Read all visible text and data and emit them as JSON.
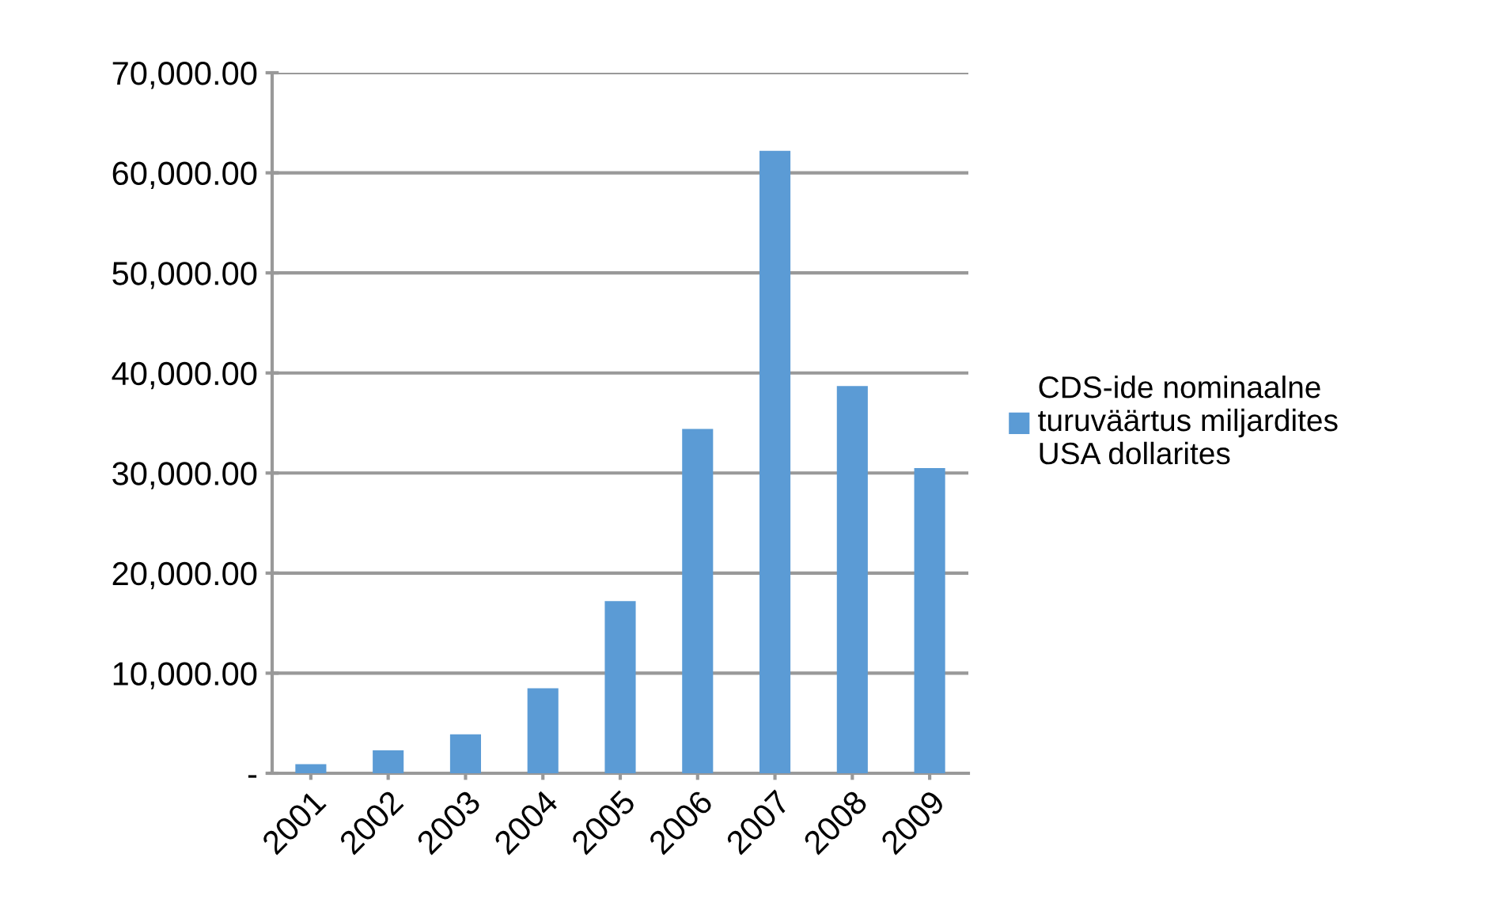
{
  "chart_data": {
    "type": "bar",
    "categories": [
      "2001",
      "2002",
      "2003",
      "2004",
      "2005",
      "2006",
      "2007",
      "2008",
      "2009"
    ],
    "series": [
      {
        "name": "CDS-ide nominaalne turuväärtus miljardites USA dollarites",
        "color": "#5b9bd5",
        "values": [
          900,
          2300,
          3900,
          8500,
          17200,
          34400,
          62200,
          38700,
          30500
        ]
      }
    ],
    "ylim": [
      0,
      70000
    ],
    "yticks": [
      {
        "value": 0,
        "label": "-"
      },
      {
        "value": 10000,
        "label": "10,000.00"
      },
      {
        "value": 20000,
        "label": "20,000.00"
      },
      {
        "value": 30000,
        "label": "30,000.00"
      },
      {
        "value": 40000,
        "label": "40,000.00"
      },
      {
        "value": 50000,
        "label": "50,000.00"
      },
      {
        "value": 60000,
        "label": "60,000.00"
      },
      {
        "value": 70000,
        "label": "70,000.00"
      }
    ],
    "grid": "y",
    "legend": "right"
  }
}
